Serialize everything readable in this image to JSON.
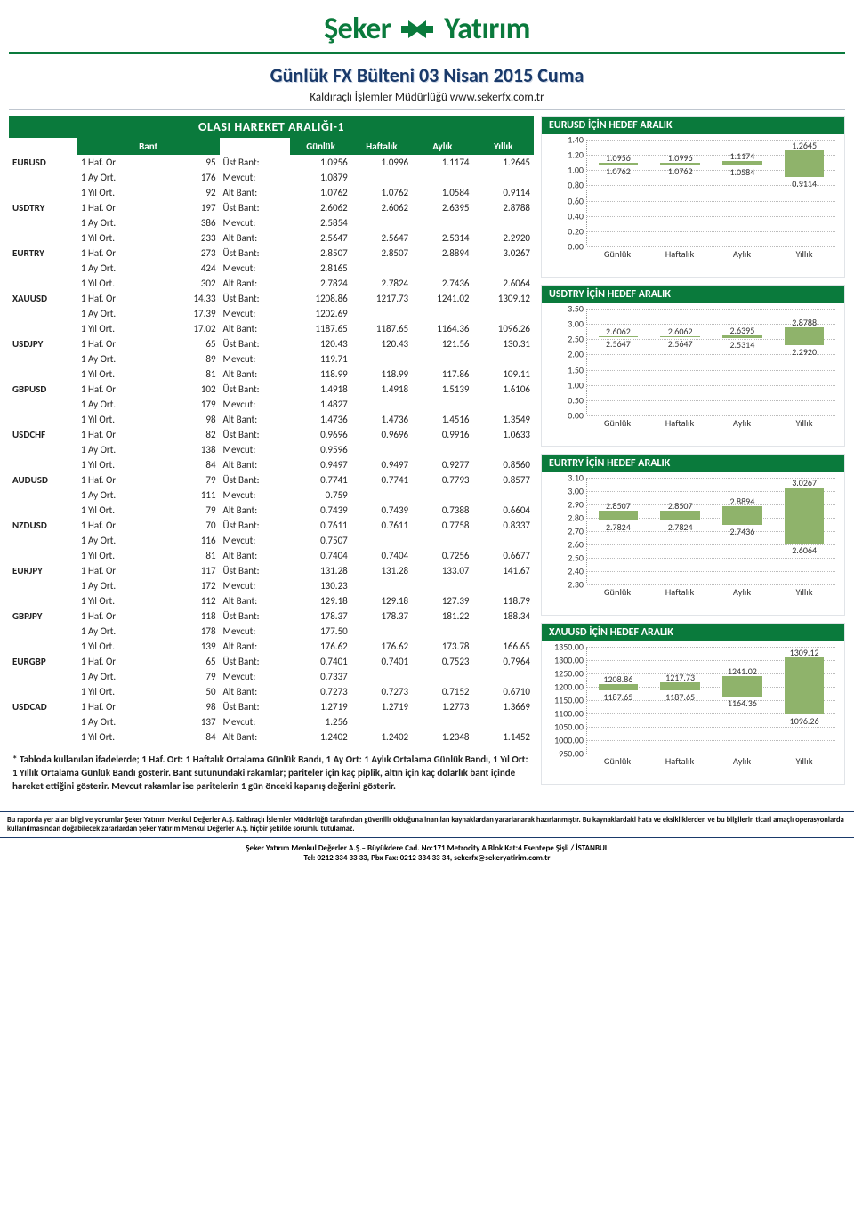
{
  "logo": {
    "left": "Şeker",
    "right": "Yatırım",
    "icon_color": "#0a7a3c"
  },
  "title": "Günlük FX Bülteni  03 Nisan 2015 Cuma",
  "subtitle": "Kaldıraçlı İşlemler Müdürlüğü www.sekerfx.com.tr",
  "section_left_title": "OLASI HAREKET ARALIĞI-1",
  "headers": {
    "bant": "Bant",
    "gunluk": "Günlük",
    "haftalik": "Haftalık",
    "aylik": "Aylık",
    "yillik": "Yıllık"
  },
  "row_labels": {
    "haf": "1 Haf. Or",
    "ay": "1 Ay Ort.",
    "yil": "1 Yıl Ort.",
    "ust": "Üst Bant:",
    "mev": "Mevcut:",
    "alt": "Alt Bant:"
  },
  "pairs": [
    {
      "sym": "EURUSD",
      "haf": "95",
      "ust": [
        "1.0956",
        "1.0996",
        "1.1174",
        "1.2645"
      ],
      "ay": "176",
      "mev": "1.0879",
      "yil": "92",
      "alt": [
        "1.0762",
        "1.0762",
        "1.0584",
        "0.9114"
      ]
    },
    {
      "sym": "USDTRY",
      "haf": "197",
      "ust": [
        "2.6062",
        "2.6062",
        "2.6395",
        "2.8788"
      ],
      "ay": "386",
      "mev": "2.5854",
      "yil": "233",
      "alt": [
        "2.5647",
        "2.5647",
        "2.5314",
        "2.2920"
      ]
    },
    {
      "sym": "EURTRY",
      "haf": "273",
      "ust": [
        "2.8507",
        "2.8507",
        "2.8894",
        "3.0267"
      ],
      "ay": "424",
      "mev": "2.8165",
      "yil": "302",
      "alt": [
        "2.7824",
        "2.7824",
        "2.7436",
        "2.6064"
      ]
    },
    {
      "sym": "XAUUSD",
      "haf": "14.33",
      "ust": [
        "1208.86",
        "1217.73",
        "1241.02",
        "1309.12"
      ],
      "ay": "17.39",
      "mev": "1202.69",
      "yil": "17.02",
      "alt": [
        "1187.65",
        "1187.65",
        "1164.36",
        "1096.26"
      ]
    },
    {
      "sym": "USDJPY",
      "haf": "65",
      "ust": [
        "120.43",
        "120.43",
        "121.56",
        "130.31"
      ],
      "ay": "89",
      "mev": "119.71",
      "yil": "81",
      "alt": [
        "118.99",
        "118.99",
        "117.86",
        "109.11"
      ]
    },
    {
      "sym": "GBPUSD",
      "haf": "102",
      "ust": [
        "1.4918",
        "1.4918",
        "1.5139",
        "1.6106"
      ],
      "ay": "179",
      "mev": "1.4827",
      "yil": "98",
      "alt": [
        "1.4736",
        "1.4736",
        "1.4516",
        "1.3549"
      ]
    },
    {
      "sym": "USDCHF",
      "haf": "82",
      "ust": [
        "0.9696",
        "0.9696",
        "0.9916",
        "1.0633"
      ],
      "ay": "138",
      "mev": "0.9596",
      "yil": "84",
      "alt": [
        "0.9497",
        "0.9497",
        "0.9277",
        "0.8560"
      ]
    },
    {
      "sym": "AUDUSD",
      "haf": "79",
      "ust": [
        "0.7741",
        "0.7741",
        "0.7793",
        "0.8577"
      ],
      "ay": "111",
      "mev": "0.759",
      "yil": "79",
      "alt": [
        "0.7439",
        "0.7439",
        "0.7388",
        "0.6604"
      ]
    },
    {
      "sym": "NZDUSD",
      "haf": "70",
      "ust": [
        "0.7611",
        "0.7611",
        "0.7758",
        "0.8337"
      ],
      "ay": "116",
      "mev": "0.7507",
      "yil": "81",
      "alt": [
        "0.7404",
        "0.7404",
        "0.7256",
        "0.6677"
      ]
    },
    {
      "sym": "EURJPY",
      "haf": "117",
      "ust": [
        "131.28",
        "131.28",
        "133.07",
        "141.67"
      ],
      "ay": "172",
      "mev": "130.23",
      "yil": "112",
      "alt": [
        "129.18",
        "129.18",
        "127.39",
        "118.79"
      ]
    },
    {
      "sym": "GBPJPY",
      "haf": "118",
      "ust": [
        "178.37",
        "178.37",
        "181.22",
        "188.34"
      ],
      "ay": "178",
      "mev": "177.50",
      "yil": "139",
      "alt": [
        "176.62",
        "176.62",
        "173.78",
        "166.65"
      ]
    },
    {
      "sym": "EURGBP",
      "haf": "65",
      "ust": [
        "0.7401",
        "0.7401",
        "0.7523",
        "0.7964"
      ],
      "ay": "79",
      "mev": "0.7337",
      "yil": "50",
      "alt": [
        "0.7273",
        "0.7273",
        "0.7152",
        "0.6710"
      ]
    },
    {
      "sym": "USDCAD",
      "haf": "98",
      "ust": [
        "1.2719",
        "1.2719",
        "1.2773",
        "1.3669"
      ],
      "ay": "137",
      "mev": "1.256",
      "yil": "84",
      "alt": [
        "1.2402",
        "1.2402",
        "1.2348",
        "1.1452"
      ]
    }
  ],
  "charts": [
    {
      "title": "EURUSD İÇİN HEDEF ARALIK",
      "ymin": 0.0,
      "ymax": 1.4,
      "ystep": 0.2,
      "bar_color": "#8fb36b",
      "cats": [
        "Günlük",
        "Haftalık",
        "Aylık",
        "Yıllık"
      ],
      "top": [
        "1.0956",
        "1.0996",
        "1.1174",
        "1.2645"
      ],
      "bot": [
        "1.0762",
        "1.0762",
        "1.0584",
        "0.9114"
      ]
    },
    {
      "title": "USDTRY İÇİN HEDEF ARALIK",
      "ymin": 0.0,
      "ymax": 3.5,
      "ystep": 0.5,
      "bar_color": "#8fb36b",
      "cats": [
        "Günlük",
        "Haftalık",
        "Aylık",
        "Yıllık"
      ],
      "top": [
        "2.6062",
        "2.6062",
        "2.6395",
        "2.8788"
      ],
      "bot": [
        "2.5647",
        "2.5647",
        "2.5314",
        "2.2920"
      ]
    },
    {
      "title": "EURTRY İÇİN HEDEF ARALIK",
      "ymin": 2.3,
      "ymax": 3.1,
      "ystep": 0.1,
      "bar_color": "#8fb36b",
      "cats": [
        "Günlük",
        "Haftalık",
        "Aylık",
        "Yıllık"
      ],
      "top": [
        "2.8507",
        "2.8507",
        "2.8894",
        "3.0267"
      ],
      "bot": [
        "2.7824",
        "2.7824",
        "2.7436",
        "2.6064"
      ]
    },
    {
      "title": "XAUUSD İÇİN HEDEF ARALIK",
      "ymin": 950.0,
      "ymax": 1350.0,
      "ystep": 50.0,
      "bar_color": "#8fb36b",
      "cats": [
        "Günlük",
        "Haftalık",
        "Aylık",
        "Yıllık"
      ],
      "top": [
        "1208.86",
        "1217.73",
        "1241.02",
        "1309.12"
      ],
      "bot": [
        "1187.65",
        "1187.65",
        "1164.36",
        "1096.26"
      ]
    }
  ],
  "footnote": "* Tabloda kullanılan ifadelerde; 1 Haf. Ort: 1 Haftalık Ortalama Günlük Bandı, 1 Ay Ort: 1 Aylık Ortalama Günlük Bandı, 1 Yıl Ort: 1 Yıllık Ortalama Günlük Bandı gösterir. Bant sutunundaki rakamlar; pariteler için kaç piplik, altın için kaç dolarlık bant içinde hareket ettiğini gösterir. Mevcut rakamlar ise paritelerin 1 gün önceki kapanış değerini gösterir.",
  "disclaimer": "Bu raporda yer alan bilgi ve yorumlar Şeker Yatırım Menkul Değerler A.Ş. Kaldıraçlı İşlemler Müdürlüğü tarafından güvenilir olduğuna inanılan kaynaklardan yararlanarak hazırlanmıştır. Bu kaynaklardaki hata ve eksikliklerden ve bu bilgilerin ticari amaçlı operasyonlarda kullanılmasından doğabilecek zararlardan Şeker Yatırım Menkul Değerler A.Ş. hiçbir şekilde sorumlu tutulamaz.",
  "contact_l1": "Şeker Yatırım Menkul Değerler A.Ş.– Büyükdere Cad. No:171 Metrocity A Blok Kat:4 Esentepe Şişli / İSTANBUL",
  "contact_l2": "Tel: 0212 334 33 33, Pbx Fax: 0212 334 33 34, sekerfx@sekeryatirim.com.tr"
}
